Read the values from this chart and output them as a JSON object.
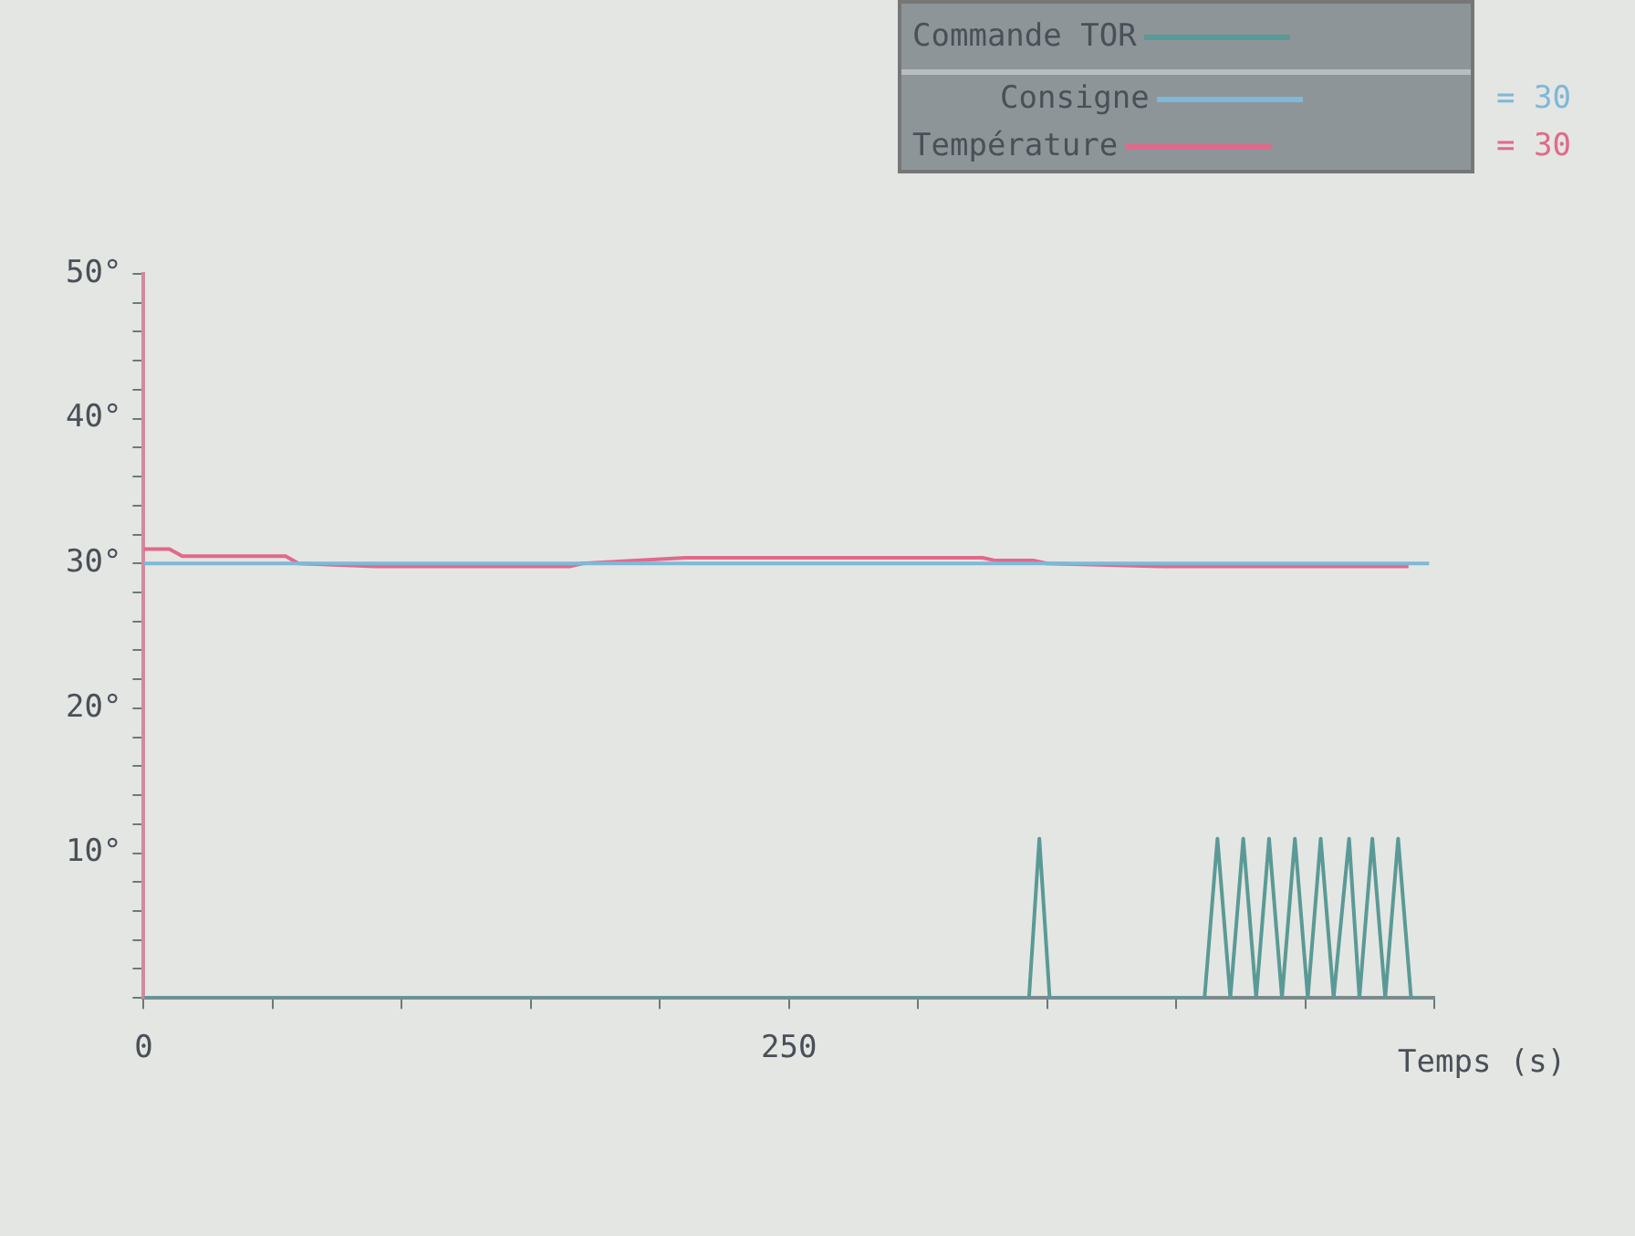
{
  "chart_data": {
    "type": "line",
    "xlabel": "Temps (s)",
    "xlim": [
      0,
      500
    ],
    "xticks": [
      {
        "value": 0,
        "label": "0"
      },
      {
        "value": 50,
        "label": null
      },
      {
        "value": 100,
        "label": null
      },
      {
        "value": 150,
        "label": null
      },
      {
        "value": 200,
        "label": null
      },
      250,
      {
        "value": 300,
        "label": null
      },
      {
        "value": 350,
        "label": null
      },
      {
        "value": 400,
        "label": null
      },
      {
        "value": 450,
        "label": null
      },
      {
        "value": 500,
        "label": null
      }
    ],
    "ylim": [
      0,
      50
    ],
    "yticks": [
      {
        "value": 0,
        "label": null
      },
      {
        "value": 2,
        "label": null
      },
      {
        "value": 4,
        "label": null
      },
      {
        "value": 6,
        "label": null
      },
      {
        "value": 8,
        "label": null
      },
      {
        "value": 10,
        "label": "10°"
      },
      {
        "value": 12,
        "label": null
      },
      {
        "value": 14,
        "label": null
      },
      {
        "value": 16,
        "label": null
      },
      {
        "value": 18,
        "label": null
      },
      {
        "value": 20,
        "label": "20°"
      },
      {
        "value": 22,
        "label": null
      },
      {
        "value": 24,
        "label": null
      },
      {
        "value": 26,
        "label": null
      },
      {
        "value": 28,
        "label": null
      },
      {
        "value": 30,
        "label": "30°"
      },
      {
        "value": 32,
        "label": null
      },
      {
        "value": 34,
        "label": null
      },
      {
        "value": 36,
        "label": null
      },
      {
        "value": 38,
        "label": null
      },
      {
        "value": 40,
        "label": "40°"
      },
      {
        "value": 42,
        "label": null
      },
      {
        "value": 44,
        "label": null
      },
      {
        "value": 46,
        "label": null
      },
      {
        "value": 48,
        "label": null
      },
      {
        "value": 50,
        "label": "50°"
      }
    ],
    "grid": false,
    "legend": "top right",
    "marker": "none",
    "line_style": "solid",
    "annotations": [
      "= 30",
      "= 30"
    ],
    "series": [
      {
        "name": "Commande TOR",
        "color": "#5a9a96",
        "x": [
          0,
          343,
          347,
          351,
          411,
          416,
          421,
          426,
          431,
          436,
          441,
          446,
          451,
          456,
          461,
          467,
          471,
          476,
          481,
          486,
          491,
          495
        ],
        "values": [
          0,
          0,
          11,
          0,
          0,
          11,
          0,
          11,
          0,
          11,
          0,
          11,
          0,
          11,
          0,
          11,
          0,
          11,
          0,
          11,
          0,
          0
        ]
      },
      {
        "name": "Consigne",
        "color": "#7fb8d8",
        "x": [
          0,
          498
        ],
        "values": [
          30,
          30
        ]
      },
      {
        "name": "Température",
        "color": "#e06a8a",
        "x": [
          0,
          10,
          15,
          55,
          60,
          90,
          165,
          170,
          210,
          325,
          330,
          345,
          350,
          395,
          490
        ],
        "values": [
          31,
          31,
          30.5,
          30.5,
          30,
          29.8,
          29.8,
          30,
          30.4,
          30.4,
          30.2,
          30.2,
          30,
          29.8,
          29.8
        ]
      }
    ]
  }
}
